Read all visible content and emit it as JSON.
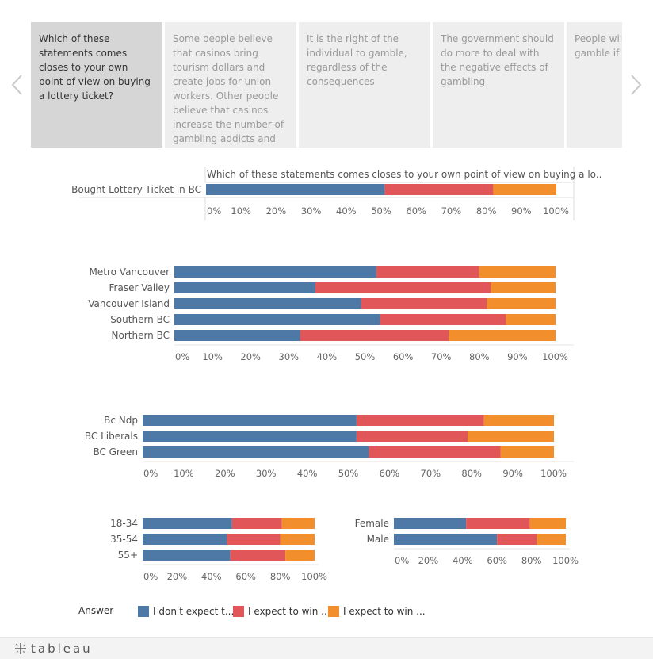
{
  "carousel": {
    "cards": [
      "Which of these statements comes closes to your own point of view on buying a lottery ticket?",
      "Some people believe that casinos bring tourism dollars and create jobs for union workers. Other people believe that casinos increase the number of gambling addicts and lead to more",
      "It is the right of the individual to gamble, regardless of the consequences",
      "The government should do more to deal with the negative effects of gambling",
      "People will find ways to gamble if it was m"
    ],
    "prev_icon": "chevron-left-icon",
    "next_icon": "chevron-right-icon"
  },
  "colors": {
    "series": [
      "#4e79a7",
      "#e15759",
      "#f28e2b"
    ],
    "grid": "#e6e6e6",
    "axis_text": "#666666"
  },
  "legend": {
    "title": "Answer",
    "items": [
      "I don't expect t...",
      "I expect to win ...",
      "I expect to win ..."
    ]
  },
  "footer": {
    "brand": "tableau"
  },
  "chart_data": [
    {
      "type": "bar",
      "stacked": true,
      "orientation": "horizontal",
      "title": "Which of these statements comes closes to your own point of view on buying a lo..",
      "categories": [
        "Bought Lottery Ticket in BC"
      ],
      "series": [
        {
          "values": [
            51
          ]
        },
        {
          "values": [
            31
          ]
        },
        {
          "values": [
            18
          ]
        }
      ],
      "xlim": [
        0,
        100
      ],
      "ticks": [
        "0%",
        "10%",
        "20%",
        "30%",
        "40%",
        "50%",
        "60%",
        "70%",
        "80%",
        "90%",
        "100%"
      ]
    },
    {
      "type": "bar",
      "stacked": true,
      "orientation": "horizontal",
      "categories": [
        "Metro Vancouver",
        "Fraser Valley",
        "Vancouver Island",
        "Southern BC",
        "Northern BC"
      ],
      "series": [
        {
          "values": [
            53,
            37,
            49,
            54,
            33
          ]
        },
        {
          "values": [
            27,
            46,
            33,
            33,
            39
          ]
        },
        {
          "values": [
            20,
            17,
            18,
            13,
            28
          ]
        }
      ],
      "xlim": [
        0,
        100
      ],
      "ticks": [
        "0%",
        "10%",
        "20%",
        "30%",
        "40%",
        "50%",
        "60%",
        "70%",
        "80%",
        "90%",
        "100%"
      ]
    },
    {
      "type": "bar",
      "stacked": true,
      "orientation": "horizontal",
      "categories": [
        "Bc Ndp",
        "BC Liberals",
        "BC Green"
      ],
      "series": [
        {
          "values": [
            52,
            52,
            55
          ]
        },
        {
          "values": [
            31,
            27,
            32
          ]
        },
        {
          "values": [
            17,
            21,
            13
          ]
        }
      ],
      "xlim": [
        0,
        100
      ],
      "ticks": [
        "0%",
        "10%",
        "20%",
        "30%",
        "40%",
        "50%",
        "60%",
        "70%",
        "80%",
        "90%",
        "100%"
      ]
    },
    {
      "type": "bar",
      "stacked": true,
      "orientation": "horizontal",
      "categories": [
        "18-34",
        "35-54",
        "55+"
      ],
      "series": [
        {
          "values": [
            52,
            49,
            51
          ]
        },
        {
          "values": [
            29,
            31,
            32
          ]
        },
        {
          "values": [
            19,
            20,
            17
          ]
        }
      ],
      "xlim": [
        0,
        100
      ],
      "ticks": [
        "0%",
        "20%",
        "40%",
        "60%",
        "80%",
        "100%"
      ]
    },
    {
      "type": "bar",
      "stacked": true,
      "orientation": "horizontal",
      "categories": [
        "Female",
        "Male"
      ],
      "series": [
        {
          "values": [
            42,
            60
          ]
        },
        {
          "values": [
            37,
            23
          ]
        },
        {
          "values": [
            21,
            17
          ]
        }
      ],
      "xlim": [
        0,
        100
      ],
      "ticks": [
        "0%",
        "20%",
        "40%",
        "60%",
        "80%",
        "100%"
      ]
    }
  ]
}
